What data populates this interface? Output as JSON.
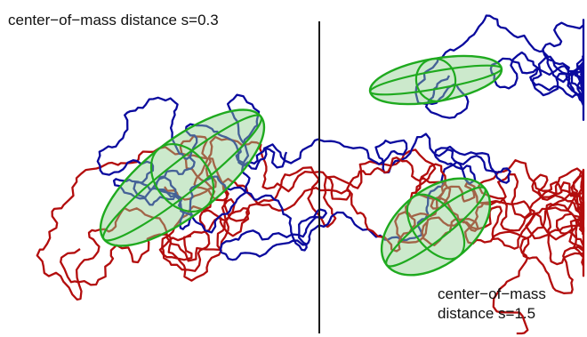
{
  "left_panel": {
    "label": "center−of−mass distance s=0.3"
  },
  "right_panel": {
    "label_line1": "center−of−mass",
    "label_line2": "distance s=1.5"
  },
  "colors": {
    "chain_a": "#0a0a9e",
    "chain_b": "#b30d0d",
    "ellipsoid_stroke": "#1faa1f",
    "ellipsoid_fill": "#8fcf8f",
    "divider": "#1a1a1a"
  }
}
